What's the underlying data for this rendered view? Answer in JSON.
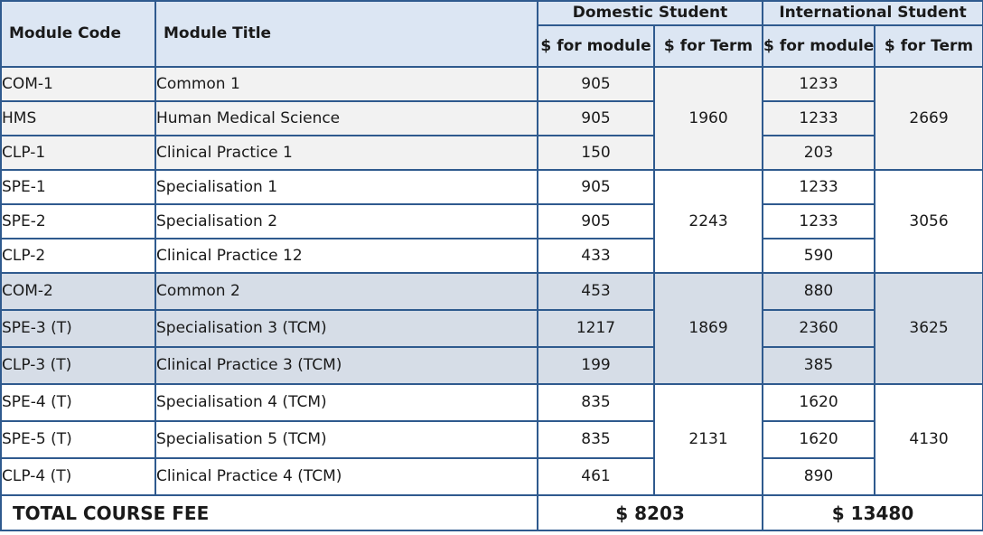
{
  "headers": {
    "module_code": "Module Code",
    "module_title": "Module Title",
    "domestic": "Domestic Student",
    "international": "International Student",
    "for_module": "for module",
    "for_term": "for Term",
    "currency_symbol": "$"
  },
  "groups": [
    {
      "shade": "#f2f2f2",
      "domestic_term": "1960",
      "international_term": "2669",
      "rows": [
        {
          "code": "COM-1",
          "title": "Common 1",
          "domestic": "905",
          "international": "1233"
        },
        {
          "code": "HMS",
          "title": "Human Medical Science",
          "domestic": "905",
          "international": "1233"
        },
        {
          "code": "CLP-1",
          "title": "Clinical Practice 1",
          "domestic": "150",
          "international": "203"
        }
      ]
    },
    {
      "shade": "#ffffff",
      "domestic_term": "2243",
      "international_term": "3056",
      "rows": [
        {
          "code": "SPE-1",
          "title": "Specialisation 1",
          "domestic": "905",
          "international": "1233"
        },
        {
          "code": "SPE-2",
          "title": "Specialisation 2",
          "domestic": "905",
          "international": "1233"
        },
        {
          "code": "CLP-2",
          "title": "Clinical Practice 12",
          "domestic": "433",
          "international": "590"
        }
      ]
    },
    {
      "shade": "#d6dde7",
      "domestic_term": "1869",
      "international_term": "3625",
      "rows": [
        {
          "code": "COM-2",
          "title": "Common 2",
          "domestic": "453",
          "international": "880"
        },
        {
          "code": "SPE-3 (T)",
          "title": "Specialisation 3 (TCM)",
          "domestic": "1217",
          "international": "2360"
        },
        {
          "code": "CLP-3 (T)",
          "title": "Clinical Practice 3 (TCM)",
          "domestic": "199",
          "international": "385"
        }
      ]
    },
    {
      "shade": "#ffffff",
      "domestic_term": "2131",
      "international_term": "4130",
      "rows": [
        {
          "code": "SPE-4 (T)",
          "title": "Specialisation 4 (TCM)",
          "domestic": "835",
          "international": "1620"
        },
        {
          "code": "SPE-5 (T)",
          "title": "Specialisation 5 (TCM)",
          "domestic": "835",
          "international": "1620"
        },
        {
          "code": "CLP-4 (T)",
          "title": "Clinical Practice 4 (TCM)",
          "domestic": "461",
          "international": "890"
        }
      ]
    }
  ],
  "total": {
    "label": "TOTAL COURSE FEE",
    "domestic": "$ 8203",
    "international": "$ 13480"
  }
}
